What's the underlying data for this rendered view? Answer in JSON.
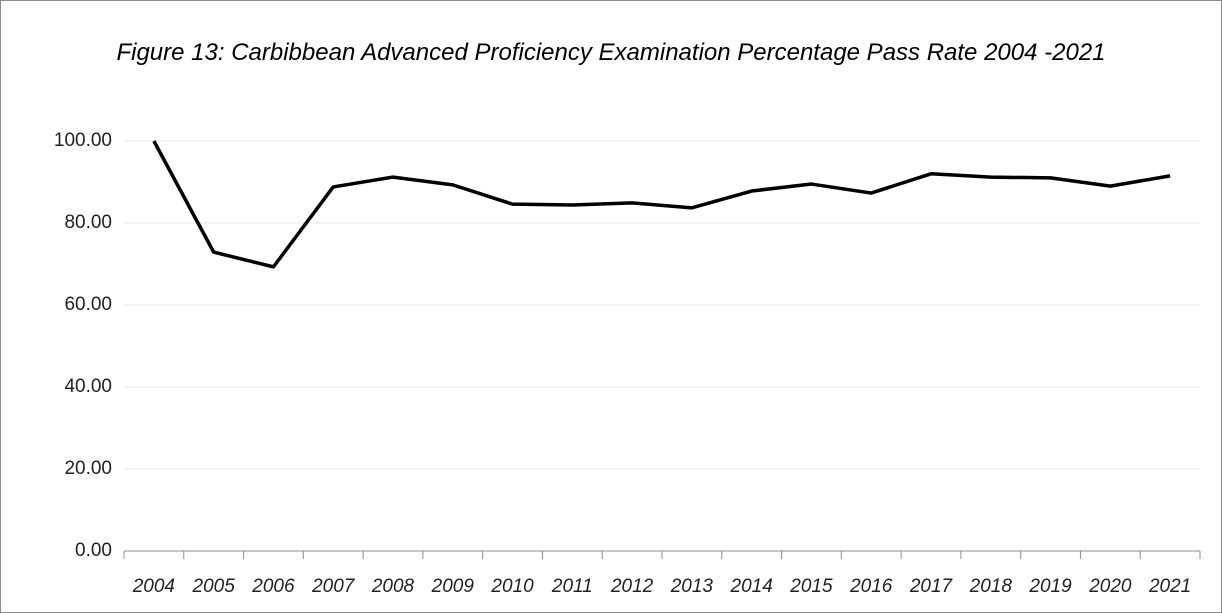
{
  "chart_data": {
    "type": "line",
    "title": "Figure 13: Carbibbean Advanced Proficiency Examination Percentage Pass Rate 2004 -2021",
    "categories": [
      "2004",
      "2005",
      "2006",
      "2007",
      "2008",
      "2009",
      "2010",
      "2011",
      "2012",
      "2013",
      "2014",
      "2015",
      "2016",
      "2017",
      "2018",
      "2019",
      "2020",
      "2021"
    ],
    "values": [
      100,
      72.9,
      69.3,
      88.8,
      91.2,
      89.3,
      84.6,
      84.4,
      84.9,
      83.7,
      87.8,
      89.5,
      87.3,
      92.0,
      91.2,
      91.0,
      89.0,
      91.5
    ],
    "color": "#000000",
    "ylim": [
      0,
      100
    ],
    "yticks": [
      {
        "value": 0,
        "label": "0.00"
      },
      {
        "value": 20,
        "label": "20.00"
      },
      {
        "value": 40,
        "label": "40.00"
      },
      {
        "value": 60,
        "label": "60.00"
      },
      {
        "value": 80,
        "label": "80.00"
      },
      {
        "value": 100,
        "label": "100.00"
      }
    ],
    "grid": true
  }
}
